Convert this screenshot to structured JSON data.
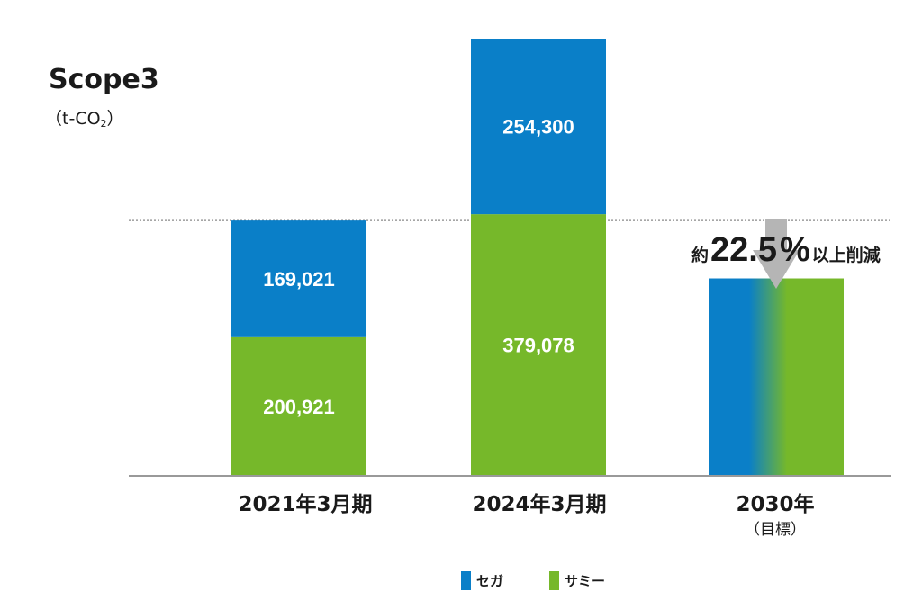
{
  "chart_data": {
    "type": "bar",
    "stacked": true,
    "title": "Scope3",
    "unit": {
      "main": "t-CO",
      "subscript": "2"
    },
    "categories": [
      {
        "label": "2021年3月期",
        "sublabel": ""
      },
      {
        "label": "2024年3月期",
        "sublabel": ""
      },
      {
        "label": "2030年",
        "sublabel": "（目標）"
      }
    ],
    "series": [
      {
        "name": "サミー",
        "color": "#76b82a",
        "values": [
          200921,
          379078,
          null
        ]
      },
      {
        "name": "セガ",
        "color": "#0a7fc8",
        "values": [
          169021,
          254300,
          null
        ]
      }
    ],
    "value_labels": [
      [
        "200,921",
        "379,078",
        ""
      ],
      [
        "169,021",
        "254,300",
        ""
      ]
    ],
    "target": {
      "category_index": 2,
      "total": 286046,
      "gradient_colors": [
        "#0a7fc8",
        "#76b82a"
      ]
    },
    "reference_line": {
      "value": 369942,
      "style": "dotted"
    },
    "annotation": {
      "prefix": "約",
      "value": "22.5",
      "percent": "%",
      "suffix": "以上削減"
    },
    "ylim": [
      0,
      633378
    ],
    "grid": false,
    "legend_position": "bottom-right",
    "axis_color": "#999999"
  }
}
